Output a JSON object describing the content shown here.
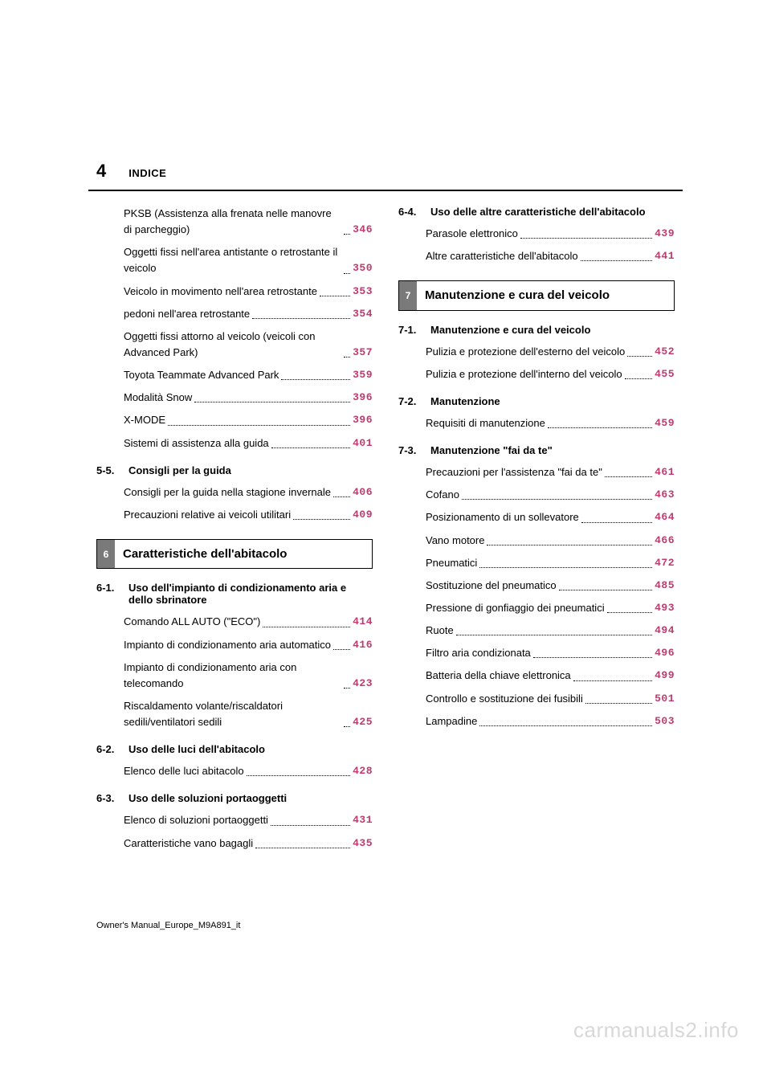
{
  "page_number": "4",
  "section_label": "INDICE",
  "accent_color": "#c03a6f",
  "footer": "Owner's Manual_Europe_M9A891_it",
  "watermark": "carmanuals2.info",
  "left_column": {
    "initial_entries": [
      {
        "text": "PKSB (Assistenza alla frenata nelle manovre di parcheggio)",
        "page": "346"
      },
      {
        "text": "Oggetti fissi nell'area antistante o retrostante il veicolo",
        "page": "350"
      },
      {
        "text": "Veicolo in movimento nell'area retrostante",
        "page": "353"
      },
      {
        "text": "pedoni nell'area retrostante",
        "page": "354"
      },
      {
        "text": "Oggetti fissi attorno al veicolo (veicoli con Advanced Park)",
        "page": "357"
      },
      {
        "text": "Toyota Teammate Advanced Park",
        "page": "359"
      },
      {
        "text": "Modalità Snow",
        "page": "396"
      },
      {
        "text": "X-MODE",
        "page": "396"
      },
      {
        "text": "Sistemi di assistenza alla guida",
        "page": "401"
      }
    ],
    "sub_5_5": {
      "num": "5-5.",
      "title": "Consigli per la guida"
    },
    "entries_5_5": [
      {
        "text": "Consigli per la guida nella stagione invernale",
        "page": "406"
      },
      {
        "text": "Precauzioni relative ai veicoli utilitari",
        "page": "409"
      }
    ],
    "chapter_6": {
      "tab": "6",
      "title": "Caratteristiche dell'abitacolo"
    },
    "sub_6_1": {
      "num": "6-1.",
      "title": "Uso dell'impianto di condizionamento aria e dello sbrinatore"
    },
    "entries_6_1": [
      {
        "text": "Comando ALL AUTO (\"ECO\")",
        "page": "414"
      },
      {
        "text": "Impianto di condizionamento aria automatico",
        "page": "416"
      },
      {
        "text": "Impianto di condizionamento aria con telecomando",
        "page": "423"
      },
      {
        "text": "Riscaldamento volante/riscaldatori sedili/ventilatori sedili",
        "page": "425"
      }
    ],
    "sub_6_2": {
      "num": "6-2.",
      "title": "Uso delle luci dell'abitacolo"
    },
    "entries_6_2": [
      {
        "text": "Elenco delle luci abitacolo",
        "page": "428"
      }
    ],
    "sub_6_3": {
      "num": "6-3.",
      "title": "Uso delle soluzioni portaoggetti"
    },
    "entries_6_3": [
      {
        "text": "Elenco di soluzioni portaoggetti",
        "page": "431"
      },
      {
        "text": "Caratteristiche vano bagagli",
        "page": "435"
      }
    ]
  },
  "right_column": {
    "sub_6_4": {
      "num": "6-4.",
      "title": "Uso delle altre caratteristiche dell'abitacolo"
    },
    "entries_6_4": [
      {
        "text": "Parasole elettronico",
        "page": "439"
      },
      {
        "text": "Altre caratteristiche dell'abitacolo",
        "page": "441"
      }
    ],
    "chapter_7": {
      "tab": "7",
      "title": "Manutenzione e cura del veicolo"
    },
    "sub_7_1": {
      "num": "7-1.",
      "title": "Manutenzione e cura del veicolo"
    },
    "entries_7_1": [
      {
        "text": "Pulizia e protezione dell'esterno del veicolo",
        "page": "452"
      },
      {
        "text": "Pulizia e protezione dell'interno del veicolo",
        "page": "455"
      }
    ],
    "sub_7_2": {
      "num": "7-2.",
      "title": "Manutenzione"
    },
    "entries_7_2": [
      {
        "text": "Requisiti di manutenzione",
        "page": "459"
      }
    ],
    "sub_7_3": {
      "num": "7-3.",
      "title": "Manutenzione \"fai da te\""
    },
    "entries_7_3": [
      {
        "text": "Precauzioni per l'assistenza \"fai da te\"",
        "page": "461"
      },
      {
        "text": "Cofano",
        "page": "463"
      },
      {
        "text": "Posizionamento di un sollevatore",
        "page": "464"
      },
      {
        "text": "Vano motore",
        "page": "466"
      },
      {
        "text": "Pneumatici",
        "page": "472"
      },
      {
        "text": "Sostituzione del pneumatico",
        "page": "485"
      },
      {
        "text": "Pressione di gonfiaggio dei pneumatici",
        "page": "493"
      },
      {
        "text": "Ruote",
        "page": "494"
      },
      {
        "text": "Filtro aria condizionata",
        "page": "496"
      },
      {
        "text": "Batteria della chiave elettronica",
        "page": "499"
      },
      {
        "text": "Controllo e sostituzione dei fusibili",
        "page": "501"
      },
      {
        "text": "Lampadine",
        "page": "503"
      }
    ]
  }
}
